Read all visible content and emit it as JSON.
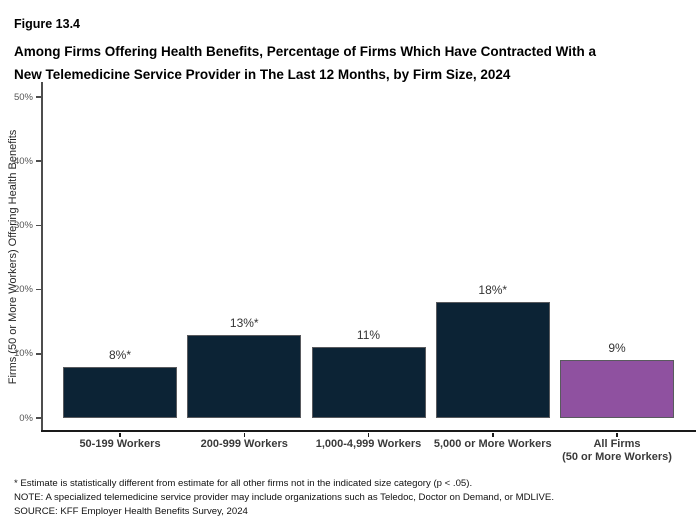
{
  "header": {
    "figure_label": "Figure 13.4",
    "title_line1": "Among Firms Offering Health Benefits, Percentage of Firms Which Have Contracted With a",
    "title_line2": "New Telemedicine Service Provider in The Last 12 Months, by Firm Size, 2024"
  },
  "chart_data": {
    "type": "bar",
    "title": "Among Firms Offering Health Benefits, Percentage of Firms Which Have Contracted With a New Telemedicine Service Provider in The Last 12 Months, by Firm Size, 2024",
    "xlabel": "",
    "ylabel": "Firms (50 or More Workers) Offering Health Benefits",
    "ylim": [
      0,
      50
    ],
    "yticks": [
      0,
      10,
      20,
      30,
      40,
      50
    ],
    "ytick_suffix": "%",
    "grid": false,
    "legend": "none",
    "categories": [
      "50-199 Workers",
      "200-999 Workers",
      "1,000-4,999 Workers",
      "5,000 or More Workers",
      "All Firms\n(50 or More Workers)"
    ],
    "values": [
      8,
      13,
      11,
      18,
      9
    ],
    "value_labels": [
      "8%*",
      "13%*",
      "11%",
      "18%*",
      "9%"
    ],
    "bar_colors": [
      "#0c2335",
      "#0c2335",
      "#0c2335",
      "#0c2335",
      "#8f51a0"
    ],
    "bar_border_color": "#595a5e"
  },
  "colors": {
    "navy": "#0c2335",
    "purple": "#8f51a0",
    "axis": "#4d4d4d",
    "background": "#ffffff"
  },
  "footnotes": [
    "* Estimate is statistically different from estimate for all other firms not in the indicated size category (p < .05).",
    "NOTE: A specialized telemedicine service provider may include organizations such as Teledoc, Doctor on Demand, or MDLIVE.",
    "SOURCE: KFF Employer Health Benefits Survey, 2024"
  ]
}
